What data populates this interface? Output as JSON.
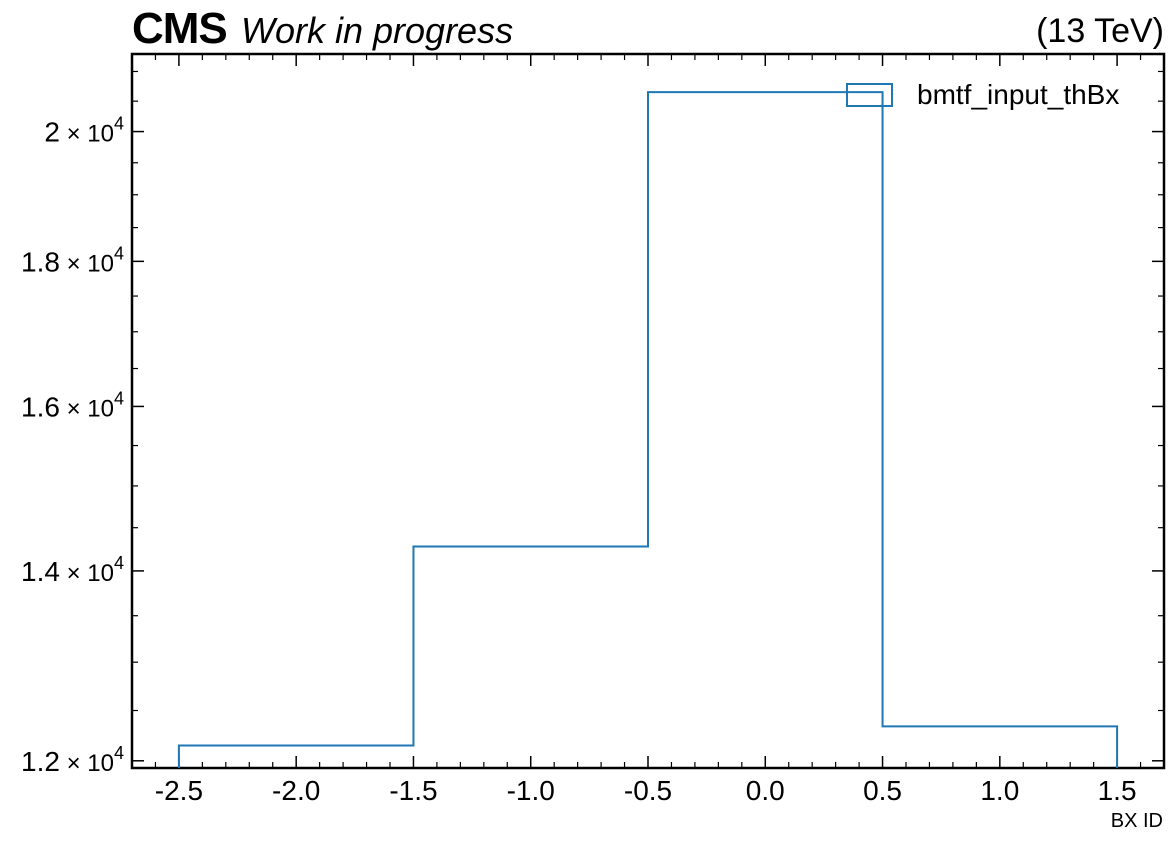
{
  "header": {
    "experiment": "CMS",
    "status": "Work in progress",
    "energy": "(13 TeV)"
  },
  "chart_data": {
    "type": "histogram-step",
    "xlabel": "BX ID",
    "ylabel": "",
    "xlim": [
      -2.7,
      1.7
    ],
    "ylim": [
      11930,
      21300
    ],
    "x_ticks": [
      -2.5,
      -2.0,
      -1.5,
      -1.0,
      -0.5,
      0.0,
      0.5,
      1.0,
      1.5
    ],
    "x_tick_labels": [
      "-2.5",
      "-2.0",
      "-1.5",
      "-1.0",
      "-0.5",
      "0.0",
      "0.5",
      "1.0",
      "1.5"
    ],
    "y_ticks": [
      {
        "value": 12000,
        "mantissa": "1.2",
        "exponent": "4"
      },
      {
        "value": 14000,
        "mantissa": "1.4",
        "exponent": "4"
      },
      {
        "value": 16000,
        "mantissa": "1.6",
        "exponent": "4"
      },
      {
        "value": 18000,
        "mantissa": "1.8",
        "exponent": "4"
      },
      {
        "value": 20000,
        "mantissa": "2",
        "exponent": "4"
      }
    ],
    "y_scale": "log",
    "series": [
      {
        "name": "bmtf_input_thBx",
        "color": "#1f77b4",
        "bin_edges": [
          -2.5,
          -1.5,
          -0.5,
          0.5,
          1.5
        ],
        "values": [
          12150,
          14280,
          20650,
          12340
        ]
      }
    ],
    "legend_position": "top-right",
    "grid": false
  }
}
